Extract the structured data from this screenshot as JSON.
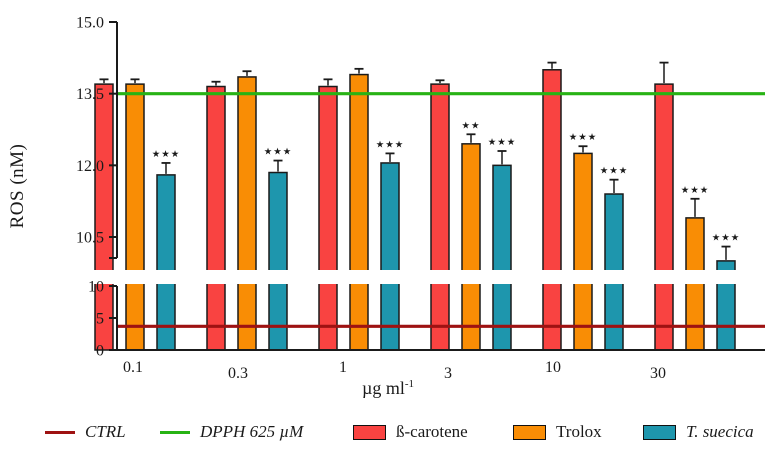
{
  "chart_data": {
    "type": "bar",
    "title": "",
    "ylabel": "ROS (nM)",
    "xlabel": "µg ml⁻¹",
    "xlabel_base": "µg ml",
    "xlabel_exponent": "-1",
    "categories": [
      "0.1",
      "0.3",
      "1",
      "3",
      "10",
      "30"
    ],
    "series": [
      {
        "name": "ß-carotene",
        "color": "#F94341",
        "values": [
          13.7,
          13.65,
          13.65,
          13.7,
          14.0,
          13.7
        ],
        "errors": [
          0.1,
          0.1,
          0.15,
          0.08,
          0.15,
          0.45
        ],
        "significance": [
          "",
          "",
          "",
          "",
          "",
          ""
        ]
      },
      {
        "name": "Trolox",
        "color": "#F98D05",
        "values": [
          13.7,
          13.85,
          13.9,
          12.45,
          12.25,
          10.9
        ],
        "errors": [
          0.1,
          0.12,
          0.12,
          0.2,
          0.15,
          0.4
        ],
        "significance": [
          "",
          "",
          "",
          "**",
          "***",
          "***"
        ]
      },
      {
        "name": "T. suecica",
        "color": "#1E96AD",
        "values": [
          11.8,
          11.85,
          12.05,
          12.0,
          11.4,
          10.0
        ],
        "errors": [
          0.25,
          0.25,
          0.2,
          0.3,
          0.3,
          0.3
        ],
        "significance": [
          "***",
          "***",
          "***",
          "***",
          "***",
          "***"
        ]
      }
    ],
    "reference_lines": [
      {
        "name": "CTRL",
        "value": 3.7,
        "color": "#9E1212",
        "axis": "lower"
      },
      {
        "name": "DPPH 625 µM",
        "value": 13.5,
        "color": "#28B314",
        "axis": "upper"
      }
    ],
    "axes": {
      "broken_axis": true,
      "grid": false,
      "y_upper": {
        "range": [
          10.1,
          15.0
        ],
        "ticks": [
          {
            "v": 15.0,
            "label": "15.0"
          },
          {
            "v": 13.5,
            "label": "13.5"
          },
          {
            "v": 12.0,
            "label": "12.0"
          },
          {
            "v": 10.5,
            "label": "10.5"
          }
        ]
      },
      "y_lower": {
        "range": [
          0,
          10
        ],
        "ticks": [
          {
            "v": 10,
            "label": "10"
          },
          {
            "v": 5,
            "label": "5"
          },
          {
            "v": 0,
            "label": "0"
          }
        ]
      }
    },
    "legend_position": "bottom"
  },
  "legend": {
    "items": [
      {
        "label": "CTRL",
        "swatch": "line",
        "color": "#9E1212",
        "italic": true
      },
      {
        "label": "DPPH 625 µM",
        "swatch": "line",
        "color": "#28B314",
        "italic": true
      },
      {
        "label": "ß-carotene",
        "swatch": "box",
        "color": "#F94341",
        "italic": false
      },
      {
        "label": "Trolox",
        "swatch": "box",
        "color": "#F98D05",
        "italic": false
      },
      {
        "label": "T. suecica",
        "swatch": "box",
        "color": "#1E96AD",
        "italic": true
      }
    ]
  }
}
